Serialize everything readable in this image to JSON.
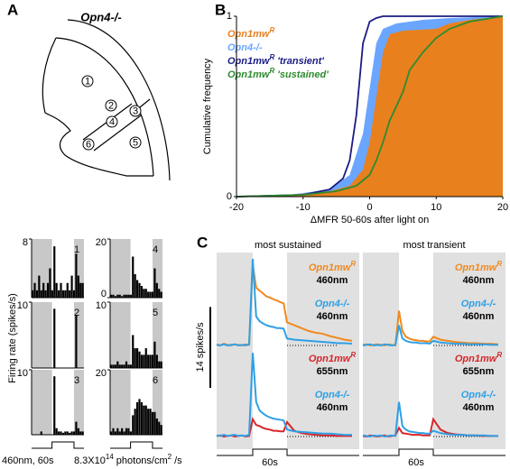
{
  "panel_labels": [
    "A",
    "B",
    "C"
  ],
  "diagram": {
    "title": "Opn4-/-",
    "regions": [
      "1",
      "2",
      "3",
      "4",
      "5",
      "6"
    ]
  },
  "chart_data": [
    {
      "type": "bar",
      "y_label": "Firing rate (spikes/s)",
      "color": "#000000",
      "shade": "#c8c8c8",
      "panels": [
        {
          "number": "1",
          "ylim": [
            0,
            8
          ],
          "yticks": [
            8
          ],
          "values": [
            1,
            2,
            1,
            3,
            1,
            2,
            1,
            2,
            4,
            1,
            7,
            2,
            1,
            2,
            1,
            1,
            2,
            1,
            3,
            1,
            6,
            3,
            2,
            2
          ]
        },
        {
          "number": "2",
          "ylim": [
            0,
            10
          ],
          "yticks": [
            10
          ],
          "values": [
            0,
            0,
            0,
            0,
            0,
            0,
            0,
            0,
            0,
            0,
            9,
            0,
            0,
            0,
            0,
            0,
            0,
            0,
            0,
            0,
            8,
            0,
            0,
            0
          ]
        },
        {
          "number": "3",
          "ylim": [
            0,
            10
          ],
          "yticks": [
            10
          ],
          "values": [
            0,
            0,
            0,
            0,
            0.5,
            0,
            0,
            0,
            0,
            0,
            9,
            1,
            0.5,
            0.5,
            0.3,
            0.5,
            0.5,
            0.3,
            0.5,
            0.5,
            2,
            1,
            0.5,
            0.5
          ]
        },
        {
          "number": "4",
          "ylim": [
            0,
            20
          ],
          "yticks": [
            0,
            20
          ],
          "values": [
            1,
            1,
            0.5,
            1,
            1,
            0.5,
            1,
            1,
            1,
            1,
            14,
            8,
            6,
            5,
            4,
            3,
            3,
            2,
            2,
            2,
            10,
            5,
            3,
            2
          ]
        },
        {
          "number": "5",
          "ylim": [
            0,
            10
          ],
          "yticks": [
            10
          ],
          "values": [
            0.5,
            0.5,
            0.5,
            1,
            0.5,
            0.5,
            0.5,
            1,
            0.5,
            0.5,
            5,
            3,
            3,
            2.5,
            2,
            2,
            3,
            2,
            2,
            2,
            4,
            2,
            1,
            1
          ]
        },
        {
          "number": "6",
          "ylim": [
            0,
            20
          ],
          "yticks": [
            20
          ],
          "values": [
            1,
            2,
            1,
            2,
            1,
            2,
            1,
            2,
            2,
            1,
            6,
            8,
            10,
            11,
            10,
            9,
            9,
            8,
            8,
            7,
            7,
            5,
            4,
            3
          ]
        }
      ],
      "stimulus": "460nm, 60s",
      "intensity": [
        {
          "text": "8.3X10"
        },
        {
          "sup": "14"
        },
        {
          "text": "photons/cm"
        },
        {
          "sup": "2"
        },
        {
          "text": "/s"
        }
      ]
    },
    {
      "type": "area",
      "x_label": "ΔMFR 50-60s after light on",
      "y_label": "Cumulative frequency",
      "xlim": [
        -20,
        20
      ],
      "ylim": [
        0,
        1
      ],
      "xticks": [
        -20,
        -10,
        0,
        10,
        20
      ],
      "yticks": [
        0,
        1
      ],
      "series": [
        {
          "label": [
            {
              "text": "Opn1mw"
            },
            {
              "sup": "R"
            }
          ],
          "color": "#e8801e",
          "fill": true,
          "x": [
            -20,
            -12,
            -6,
            -3,
            -1,
            0,
            1,
            2,
            3,
            5,
            10,
            12,
            15,
            20
          ],
          "values": [
            0,
            0.01,
            0.03,
            0.06,
            0.15,
            0.3,
            0.55,
            0.8,
            0.9,
            0.92,
            0.93,
            0.96,
            0.98,
            1
          ]
        },
        {
          "label": [
            {
              "text": "Opn4-/-"
            }
          ],
          "color": "#6aa6ff",
          "fill": true,
          "x": [
            -20,
            -12,
            -6,
            -3,
            -1,
            0,
            1,
            2,
            4,
            8,
            12,
            20
          ],
          "values": [
            0,
            0.01,
            0.04,
            0.12,
            0.35,
            0.6,
            0.85,
            0.93,
            0.96,
            0.98,
            0.99,
            1
          ]
        },
        {
          "label": [
            {
              "text": "Opn1mw"
            },
            {
              "sup": "R"
            },
            {
              "text": "'transient'"
            }
          ],
          "color": "#1c1c84",
          "fill": false,
          "x": [
            -20,
            -10,
            -6,
            -4,
            -3,
            -2,
            -1,
            0,
            1,
            2,
            20
          ],
          "values": [
            0,
            0.01,
            0.04,
            0.1,
            0.2,
            0.45,
            0.85,
            0.97,
            0.99,
            1,
            1
          ]
        },
        {
          "label": [
            {
              "text": "Opn1mw"
            },
            {
              "sup": "R"
            },
            {
              "text": "'sustained'"
            }
          ],
          "color": "#2e8b2e",
          "fill": false,
          "x": [
            -20,
            -10,
            -5,
            -2,
            0,
            1,
            2,
            3,
            4,
            5,
            6,
            8,
            10,
            12,
            15,
            20
          ],
          "values": [
            0,
            0.01,
            0.03,
            0.06,
            0.12,
            0.2,
            0.3,
            0.42,
            0.5,
            0.58,
            0.7,
            0.8,
            0.88,
            0.93,
            0.97,
            1
          ]
        }
      ]
    },
    {
      "type": "line",
      "scale_bar": "14 spikes/s",
      "scale_value": 14,
      "duration": "60s",
      "shade": "#e0e0e0",
      "columns": [
        {
          "title": "most sustained",
          "rows": [
            {
              "series": [
                {
                  "label": [
                    {
                      "text": "Opn1mw"
                    },
                    {
                      "sup": "R"
                    }
                  ],
                  "wavelength": "460nm",
                  "color": "#f0891f",
                  "values": [
                    0.2,
                    0,
                    0.3,
                    0.1,
                    0,
                    0.2,
                    0.1,
                    0,
                    0.2,
                    0.1,
                    14,
                    10,
                    9.5,
                    9,
                    8.5,
                    8.3,
                    8,
                    7.8,
                    7.5,
                    7.3,
                    4,
                    3.5,
                    3,
                    2.5,
                    2.2,
                    2,
                    1.6,
                    1.3,
                    1,
                    0.8
                  ]
                },
                {
                  "label": [
                    {
                      "text": "Opn4-/-"
                    }
                  ],
                  "wavelength": "460nm",
                  "color": "#2ea0e6",
                  "values": [
                    0.1,
                    0,
                    0.2,
                    0,
                    0.1,
                    0.2,
                    0,
                    0.1,
                    0,
                    0.2,
                    15,
                    5,
                    4.2,
                    3.8,
                    3.5,
                    3.3,
                    3.2,
                    3,
                    3,
                    2.9,
                    1.2,
                    1,
                    0.9,
                    0.8,
                    0.7,
                    0.6,
                    0.5,
                    0.4,
                    0.4,
                    0.3
                  ]
                }
              ]
            },
            {
              "series": [
                {
                  "label": [
                    {
                      "text": "Opn1mw"
                    },
                    {
                      "sup": "R"
                    }
                  ],
                  "wavelength": "655nm",
                  "color": "#d7262a",
                  "values": [
                    0.1,
                    0.2,
                    0,
                    0.1,
                    0.2,
                    0,
                    0.1,
                    0.2,
                    0,
                    0.1,
                    3,
                    2,
                    1.8,
                    1.5,
                    1.3,
                    1.2,
                    1,
                    1,
                    0.9,
                    0.9,
                    2.5,
                    1,
                    0.6,
                    0.4,
                    0.3,
                    0.2,
                    0.2,
                    0.1,
                    0.1,
                    0.1
                  ]
                },
                {
                  "label": [
                    {
                      "text": "Opn4-/-"
                    }
                  ],
                  "wavelength": "460nm",
                  "color": "#2ea0e6",
                  "values": [
                    0.2,
                    0.1,
                    0.3,
                    0.1,
                    0.2,
                    0.3,
                    0.1,
                    0.2,
                    0.1,
                    0.3,
                    14.5,
                    6,
                    4.5,
                    4,
                    3.6,
                    3.3,
                    3.1,
                    3,
                    2.9,
                    2.8,
                    1.2,
                    0.9,
                    0.8,
                    0.7,
                    0.6,
                    0.5,
                    0.5,
                    0.4,
                    0.3,
                    0.3
                  ]
                }
              ]
            }
          ]
        },
        {
          "title": "most transient",
          "rows": [
            {
              "series": [
                {
                  "label": [
                    {
                      "text": "Opn1mw"
                    },
                    {
                      "sup": "R"
                    }
                  ],
                  "wavelength": "460nm",
                  "color": "#f0891f",
                  "values": [
                    0.1,
                    0.2,
                    0,
                    0.1,
                    0.2,
                    0.1,
                    0,
                    0.2,
                    0.1,
                    0,
                    6,
                    2.5,
                    1.5,
                    1.2,
                    1,
                    0.9,
                    0.8,
                    0.8,
                    0.7,
                    0.7,
                    1.5,
                    1,
                    0.8,
                    0.6,
                    0.5,
                    0.4,
                    0.4,
                    0.3,
                    0.3,
                    0.2
                  ]
                },
                {
                  "label": [
                    {
                      "text": "Opn4-/-"
                    }
                  ],
                  "wavelength": "460nm",
                  "color": "#2ea0e6",
                  "values": [
                    0,
                    0.1,
                    0.2,
                    0,
                    0.1,
                    0,
                    0.2,
                    0.1,
                    0,
                    0.1,
                    3.5,
                    1.2,
                    0.8,
                    0.6,
                    0.5,
                    0.5,
                    0.4,
                    0.4,
                    0.4,
                    0.3,
                    0.8,
                    0.5,
                    0.4,
                    0.3,
                    0.3,
                    0.2,
                    0.2,
                    0.2,
                    0.1,
                    0.1
                  ]
                }
              ]
            },
            {
              "series": [
                {
                  "label": [
                    {
                      "text": "Opn1mw"
                    },
                    {
                      "sup": "R"
                    }
                  ],
                  "wavelength": "655nm",
                  "color": "#d7262a",
                  "values": [
                    0.1,
                    0,
                    0.2,
                    0.1,
                    0,
                    0.1,
                    0.2,
                    0,
                    0.1,
                    0.2,
                    1.5,
                    0.6,
                    0.5,
                    0.4,
                    0.3,
                    0.3,
                    0.3,
                    0.2,
                    0.2,
                    0.2,
                    3,
                    1.2,
                    0.6,
                    0.4,
                    0.3,
                    0.2,
                    0.2,
                    0.1,
                    0.1,
                    0.1
                  ]
                },
                {
                  "label": [
                    {
                      "text": "Opn4-/-"
                    }
                  ],
                  "wavelength": "460nm",
                  "color": "#2ea0e6",
                  "values": [
                    0.2,
                    0.1,
                    0,
                    0.2,
                    0.1,
                    0.2,
                    0,
                    0.1,
                    0.2,
                    0.1,
                    6,
                    1.8,
                    1.2,
                    0.9,
                    0.8,
                    0.7,
                    0.6,
                    0.6,
                    0.5,
                    0.5,
                    1,
                    0.6,
                    0.4,
                    0.3,
                    0.3,
                    0.2,
                    0.2,
                    0.2,
                    0.1,
                    0.1
                  ]
                }
              ]
            }
          ]
        }
      ]
    }
  ]
}
